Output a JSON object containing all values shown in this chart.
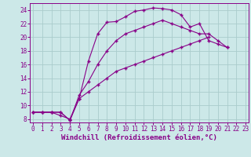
{
  "xlabel": "Windchill (Refroidissement éolien,°C)",
  "bg_color": "#cce8e8",
  "grid_color": "#aacccc",
  "line_color": "#880088",
  "line1_x": [
    0,
    1,
    2,
    3,
    4,
    5,
    6,
    7,
    8,
    9,
    10,
    11,
    12,
    13,
    14,
    15,
    16,
    17,
    18,
    19,
    20,
    21
  ],
  "line1_y": [
    9.0,
    9.0,
    9.0,
    8.5,
    8.0,
    11.0,
    16.5,
    20.5,
    22.2,
    22.3,
    23.0,
    23.8,
    24.0,
    24.3,
    24.2,
    24.0,
    23.3,
    21.5,
    22.0,
    19.5,
    19.0,
    18.5
  ],
  "line2_x": [
    0,
    1,
    2,
    3,
    4,
    5,
    6,
    7,
    8,
    9,
    10,
    11,
    12,
    13,
    14,
    15,
    16,
    17,
    18,
    19,
    20,
    21,
    22,
    23
  ],
  "line2_y": [
    9.0,
    9.0,
    9.0,
    9.0,
    7.8,
    11.5,
    13.5,
    16.0,
    18.0,
    19.5,
    20.5,
    21.0,
    21.5,
    22.0,
    22.5,
    22.0,
    21.5,
    21.0,
    20.5,
    20.5,
    19.5,
    18.5,
    null,
    null
  ],
  "line3_x": [
    0,
    1,
    2,
    3,
    4,
    5,
    6,
    7,
    8,
    9,
    10,
    11,
    12,
    13,
    14,
    15,
    16,
    17,
    18,
    19,
    20,
    21,
    22,
    23
  ],
  "line3_y": [
    9.0,
    9.0,
    9.0,
    9.0,
    7.8,
    11.0,
    12.0,
    13.0,
    14.0,
    15.0,
    15.5,
    16.0,
    16.5,
    17.0,
    17.5,
    18.0,
    18.5,
    19.0,
    19.5,
    20.0,
    null,
    null,
    null,
    null
  ],
  "xlim": [
    -0.3,
    23.3
  ],
  "ylim": [
    7.5,
    25.0
  ],
  "yticks": [
    8,
    10,
    12,
    14,
    16,
    18,
    20,
    22,
    24
  ],
  "xticks": [
    0,
    1,
    2,
    3,
    4,
    5,
    6,
    7,
    8,
    9,
    10,
    11,
    12,
    13,
    14,
    15,
    16,
    17,
    18,
    19,
    20,
    21,
    22,
    23
  ],
  "tick_fontsize": 5.5,
  "xlabel_fontsize": 6.5
}
